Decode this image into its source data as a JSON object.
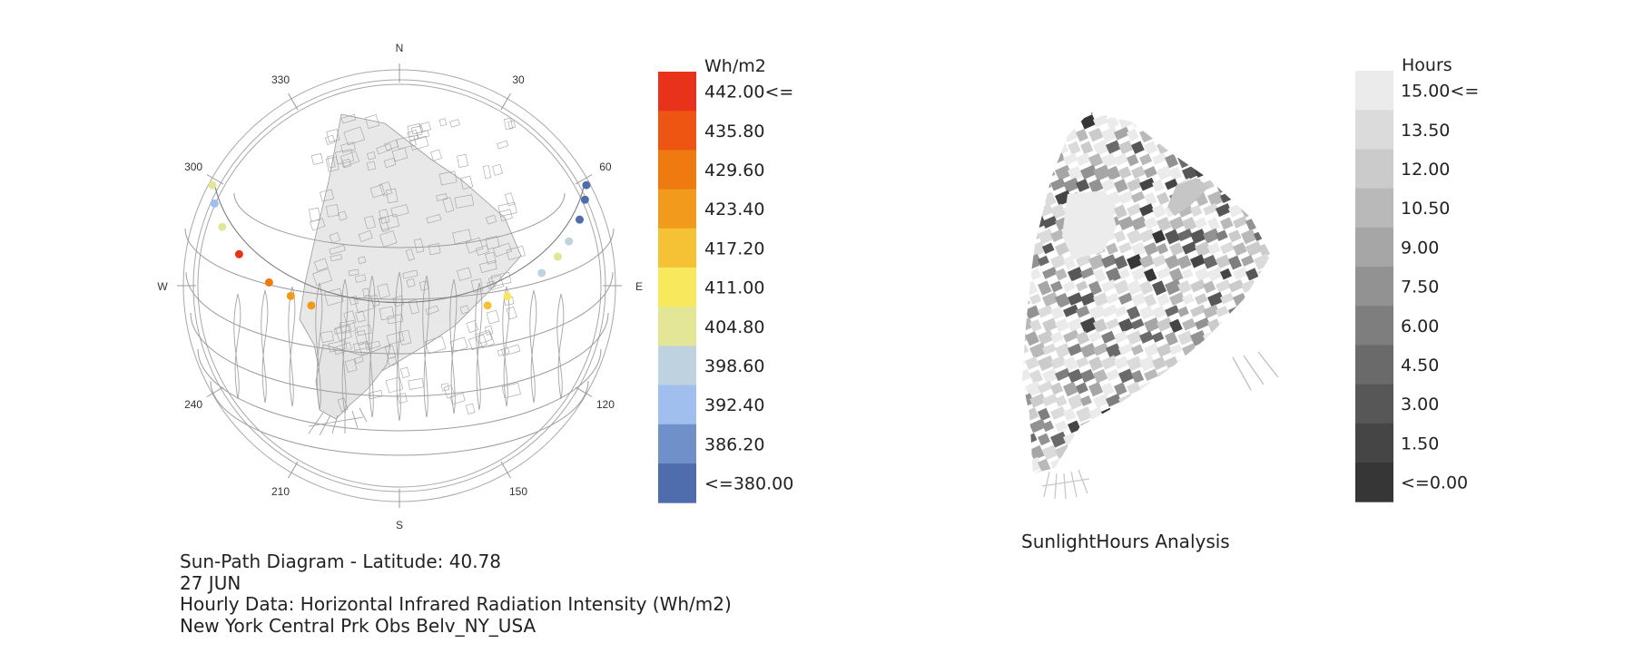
{
  "sunpath": {
    "compass": {
      "N": "N",
      "S": "S",
      "E": "E",
      "W": "W",
      "degrees": [
        "30",
        "60",
        "120",
        "150",
        "210",
        "240",
        "300",
        "330"
      ]
    },
    "legend": {
      "unit": "Wh/m2",
      "labels": [
        "442.00<=",
        "435.80",
        "429.60",
        "423.40",
        "417.20",
        "411.00",
        "404.80",
        "398.60",
        "392.40",
        "386.20",
        "<=380.00"
      ],
      "colors": [
        "#e8321b",
        "#ee5412",
        "#ef7a10",
        "#f19a1c",
        "#f5c236",
        "#f8e85e",
        "#e2e696",
        "#bed3df",
        "#a1bfee",
        "#6f90c9",
        "#4f6cad"
      ]
    },
    "sun_points": [
      {
        "azimuth": 58,
        "color": "#4f6cad"
      },
      {
        "azimuth": 65,
        "color": "#4f6cad"
      },
      {
        "azimuth": 72,
        "color": "#4f6cad"
      },
      {
        "azimuth": 80,
        "color": "#bed3df"
      },
      {
        "azimuth": 86,
        "color": "#e2e696"
      },
      {
        "azimuth": 93,
        "color": "#bed3df"
      },
      {
        "azimuth": 105,
        "color": "#f8e85e"
      },
      {
        "azimuth": 111,
        "color": "#f5c236"
      },
      {
        "azimuth": 252,
        "color": "#f19a1c"
      },
      {
        "azimuth": 258,
        "color": "#f19a1c"
      },
      {
        "azimuth": 265,
        "color": "#ef7a10"
      },
      {
        "azimuth": 277,
        "color": "#e8321b"
      },
      {
        "azimuth": 287,
        "color": "#e2e696"
      },
      {
        "azimuth": 295,
        "color": "#a1bfee"
      },
      {
        "azimuth": 303,
        "color": "#e2e696"
      }
    ],
    "caption": [
      "Sun-Path Diagram - Latitude: 40.78",
      "27 JUN",
      "Hourly Data: Horizontal Infrared Radiation Intensity (Wh/m2)",
      "New York Central Prk Obs Belv_NY_USA"
    ]
  },
  "sunlight": {
    "legend": {
      "unit": "Hours",
      "labels": [
        "15.00<=",
        "13.50",
        "12.00",
        "10.50",
        "9.00",
        "7.50",
        "6.00",
        "4.50",
        "3.00",
        "1.50",
        "<=0.00"
      ],
      "colors": [
        "#ebebeb",
        "#dbdbdb",
        "#cbcbcb",
        "#b9b9b9",
        "#a6a6a6",
        "#929292",
        "#7e7e7e",
        "#6a6a6a",
        "#575757",
        "#454545",
        "#363636"
      ]
    },
    "caption": "SunlightHours Analysis"
  },
  "colors": {
    "map_fill": "#e8e8e8",
    "map_stroke": "#9a9a9a",
    "path_stroke": "#9c9c9c"
  }
}
